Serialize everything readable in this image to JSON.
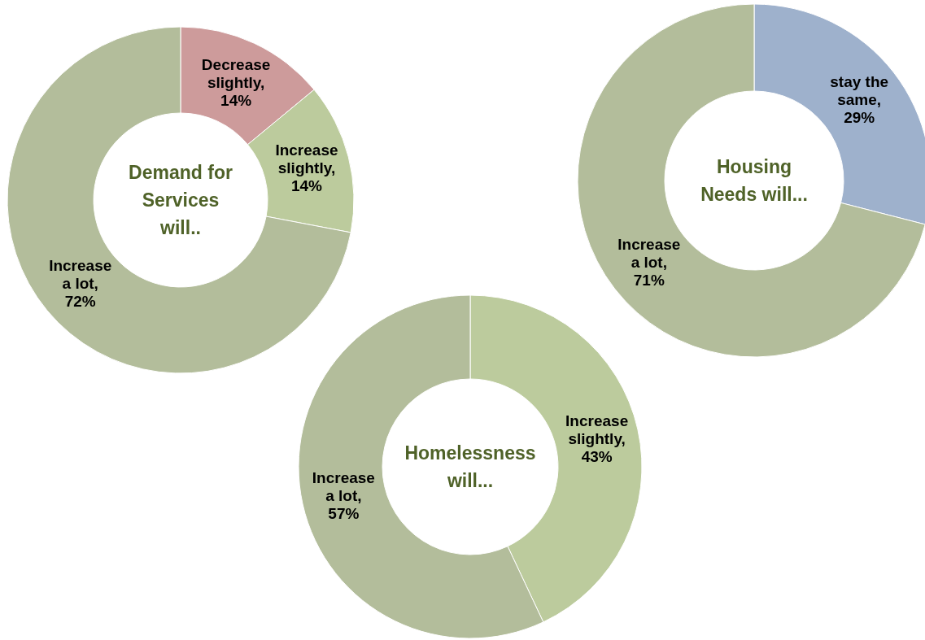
{
  "chart_data": [
    {
      "type": "donut",
      "title": "Demand for Services will..",
      "categories": [
        "Decrease slightly",
        "Increase slightly",
        "Increase a lot"
      ],
      "values": [
        14,
        14,
        72
      ],
      "colors": [
        "#cd9b9b",
        "#bccb9d",
        "#b3bd9b"
      ],
      "value_labels": [
        ", 14%",
        ", 14%",
        ", 72%"
      ]
    },
    {
      "type": "donut",
      "title": "Housing Needs will...",
      "categories": [
        "stay the same",
        "Increase a lot"
      ],
      "values": [
        29,
        71
      ],
      "colors": [
        "#9eb1cc",
        "#b3bd9b"
      ],
      "value_labels": [
        ", 29%",
        ", 71%"
      ]
    },
    {
      "type": "donut",
      "title": "Homelessness will...",
      "categories": [
        "Increase slightly",
        "Increase a lot"
      ],
      "values": [
        43,
        57
      ],
      "colors": [
        "#bccb9d",
        "#b3bd9b"
      ],
      "value_labels": [
        ", 43%",
        ", 57%"
      ]
    }
  ]
}
